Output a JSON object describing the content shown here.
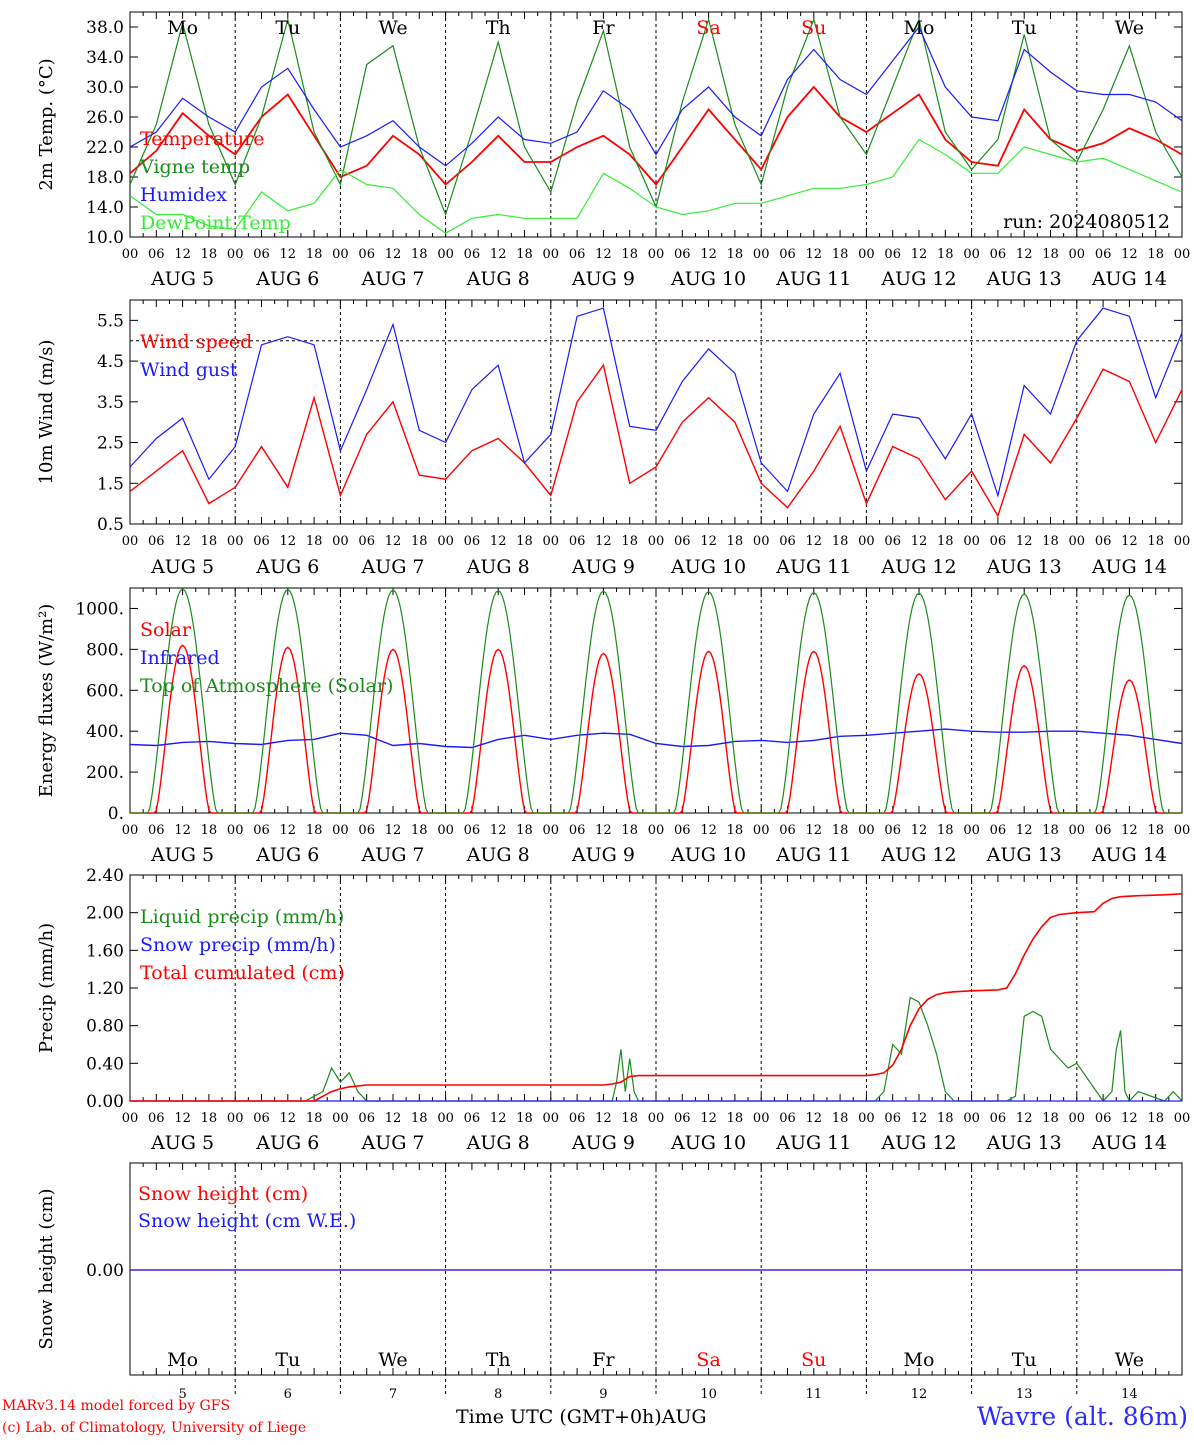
{
  "meta": {
    "run_label": "run: 2024080512",
    "model_line": "MARv3.14 model forced by GFS",
    "credit_line": "(c) Lab. of Climatology, University of Liege",
    "station": "Wavre (alt. 86m)",
    "time_axis_title": "Time UTC (GMT+0h)",
    "month_label": "AUG"
  },
  "days": {
    "names": [
      "Mo",
      "Tu",
      "We",
      "Th",
      "Fr",
      "Sa",
      "Su",
      "Mo",
      "Tu",
      "We"
    ],
    "weekend_flags": [
      false,
      false,
      false,
      false,
      false,
      true,
      true,
      false,
      false,
      false
    ],
    "dates": [
      "AUG  5",
      "AUG  6",
      "AUG  7",
      "AUG  8",
      "AUG  9",
      "AUG 10",
      "AUG 11",
      "AUG 12",
      "AUG 13",
      "AUG 14"
    ],
    "numbers": [
      "5",
      "6",
      "7",
      "8",
      "9",
      "10",
      "11",
      "12",
      "13",
      "14"
    ],
    "hour_labels": [
      "00",
      "06",
      "12",
      "18"
    ],
    "final_hour_label": "00"
  },
  "colors": {
    "temperature": "#ff0000",
    "vigne": "#1a8c1a",
    "humidex": "#1a1aff",
    "dewpoint": "#33ee33",
    "weekend_text": "#ff0000",
    "grid": "#000000"
  },
  "chart_data": [
    {
      "type": "line",
      "title": "",
      "ylabel": "2m Temp. (°C)",
      "ylim": [
        10.0,
        40.0
      ],
      "y_ticks": [
        "10.0",
        "14.0",
        "18.0",
        "22.0",
        "26.0",
        "30.0",
        "34.0",
        "38.0"
      ],
      "y_tick_values": [
        10,
        14,
        18,
        22,
        26,
        30,
        34,
        38
      ],
      "x_unit": "hours since AUG 5 00 UTC",
      "x_max": 240,
      "series": [
        {
          "name": "Temperature",
          "color": "#ff0000",
          "width": 1.8,
          "x": [
            0,
            6,
            12,
            18,
            24,
            30,
            36,
            42,
            48,
            54,
            60,
            66,
            72,
            78,
            84,
            90,
            96,
            102,
            108,
            114,
            120,
            126,
            132,
            138,
            144,
            150,
            156,
            162,
            168,
            174,
            180,
            186,
            192,
            198,
            204,
            210,
            216,
            222,
            228,
            234,
            240
          ],
          "y": [
            18.5,
            21.5,
            26.5,
            23.5,
            21.0,
            26.0,
            29.0,
            23.5,
            18.0,
            19.5,
            23.5,
            21.0,
            17.0,
            20.0,
            23.5,
            20.0,
            20.0,
            22.0,
            23.5,
            21.0,
            17.0,
            22.0,
            27.0,
            23.0,
            19.0,
            26.0,
            30.0,
            26.0,
            24.0,
            26.5,
            29.0,
            23.0,
            20.0,
            19.5,
            27.0,
            23.0,
            21.5,
            22.5,
            24.5,
            23.0,
            21.0
          ]
        },
        {
          "name": "Vigne temp",
          "color": "#1a8c1a",
          "width": 1.2,
          "x": [
            0,
            6,
            12,
            18,
            24,
            30,
            36,
            42,
            48,
            54,
            60,
            66,
            72,
            78,
            84,
            90,
            96,
            102,
            108,
            114,
            120,
            126,
            132,
            138,
            144,
            150,
            156,
            162,
            168,
            174,
            180,
            186,
            192,
            198,
            204,
            210,
            216,
            222,
            228,
            234,
            240
          ],
          "y": [
            17.0,
            25.0,
            38.5,
            25.0,
            17.0,
            26.0,
            39.0,
            24.0,
            17.0,
            33.0,
            35.5,
            22.0,
            13.0,
            24.0,
            36.0,
            22.0,
            16.0,
            28.0,
            37.5,
            22.0,
            14.0,
            28.0,
            39.0,
            25.0,
            17.0,
            30.0,
            39.0,
            26.0,
            21.0,
            30.0,
            39.0,
            24.0,
            19.0,
            23.0,
            37.0,
            23.0,
            20.0,
            27.0,
            35.5,
            24.0,
            18.0
          ]
        },
        {
          "name": "Humidex",
          "color": "#1a1aff",
          "width": 1.2,
          "x": [
            0,
            6,
            12,
            18,
            24,
            30,
            36,
            42,
            48,
            54,
            60,
            66,
            72,
            78,
            84,
            90,
            96,
            102,
            108,
            114,
            120,
            126,
            132,
            138,
            144,
            150,
            156,
            162,
            168,
            174,
            180,
            186,
            192,
            198,
            204,
            210,
            216,
            222,
            228,
            234,
            240
          ],
          "y": [
            22.0,
            24.0,
            28.5,
            26.0,
            24.0,
            30.0,
            32.5,
            27.0,
            22.0,
            23.5,
            25.5,
            22.0,
            19.5,
            22.5,
            26.0,
            23.0,
            22.5,
            24.0,
            29.5,
            27.0,
            21.0,
            27.0,
            30.0,
            26.0,
            23.5,
            31.0,
            35.0,
            31.0,
            29.0,
            33.5,
            38.0,
            30.0,
            26.0,
            25.5,
            35.0,
            32.0,
            29.5,
            29.0,
            29.0,
            28.0,
            25.5
          ]
        },
        {
          "name": "DewPoint Temp",
          "color": "#33ee33",
          "width": 1.2,
          "x": [
            0,
            6,
            12,
            18,
            24,
            30,
            36,
            42,
            48,
            54,
            60,
            66,
            72,
            78,
            84,
            90,
            96,
            102,
            108,
            114,
            120,
            126,
            132,
            138,
            144,
            150,
            156,
            162,
            168,
            174,
            180,
            186,
            192,
            198,
            204,
            210,
            216,
            222,
            228,
            234,
            240
          ],
          "y": [
            15.5,
            13.0,
            13.0,
            11.5,
            11.0,
            16.0,
            13.5,
            14.5,
            19.0,
            17.0,
            16.5,
            13.0,
            10.5,
            12.5,
            13.0,
            12.5,
            12.5,
            12.5,
            18.5,
            16.5,
            14.0,
            13.0,
            13.5,
            14.5,
            14.5,
            15.5,
            16.5,
            16.5,
            17.0,
            18.0,
            23.0,
            21.0,
            18.5,
            18.5,
            22.0,
            21.0,
            20.0,
            20.5,
            19.0,
            17.5,
            16.0
          ]
        }
      ]
    },
    {
      "type": "line",
      "title": "",
      "ylabel": "10m Wind (m/s)",
      "ylim": [
        0.5,
        6.0
      ],
      "y_ticks": [
        "0.5",
        "1.5",
        "2.5",
        "3.5",
        "4.5",
        "5.5"
      ],
      "y_tick_values": [
        0.5,
        1.5,
        2.5,
        3.5,
        4.5,
        5.5
      ],
      "reference_line": 5.0,
      "x_unit": "hours since AUG 5 00 UTC",
      "x_max": 240,
      "series": [
        {
          "name": "Wind speed",
          "color": "#ff0000",
          "width": 1.4,
          "x": [
            0,
            6,
            12,
            18,
            24,
            30,
            36,
            42,
            48,
            54,
            60,
            66,
            72,
            78,
            84,
            90,
            96,
            102,
            108,
            114,
            120,
            126,
            132,
            138,
            144,
            150,
            156,
            162,
            168,
            174,
            180,
            186,
            192,
            198,
            204,
            210,
            216,
            222,
            228,
            234,
            240
          ],
          "y": [
            1.3,
            1.8,
            2.3,
            1.0,
            1.4,
            2.4,
            1.4,
            3.6,
            1.2,
            2.7,
            3.5,
            1.7,
            1.6,
            2.3,
            2.6,
            2.0,
            1.2,
            3.5,
            4.4,
            1.5,
            1.9,
            3.0,
            3.6,
            3.0,
            1.5,
            0.9,
            1.8,
            2.9,
            1.0,
            2.4,
            2.1,
            1.1,
            1.8,
            0.7,
            2.7,
            2.0,
            3.1,
            4.3,
            4.0,
            2.5,
            3.8
          ]
        },
        {
          "name": "Wind gust",
          "color": "#1a1aff",
          "width": 1.2,
          "x": [
            0,
            6,
            12,
            18,
            24,
            30,
            36,
            42,
            48,
            54,
            60,
            66,
            72,
            78,
            84,
            90,
            96,
            102,
            108,
            114,
            120,
            126,
            132,
            138,
            144,
            150,
            156,
            162,
            168,
            174,
            180,
            186,
            192,
            198,
            204,
            210,
            216,
            222,
            228,
            234,
            240
          ],
          "y": [
            1.9,
            2.6,
            3.1,
            1.6,
            2.4,
            4.9,
            5.1,
            4.9,
            2.3,
            3.8,
            5.4,
            2.8,
            2.5,
            3.8,
            4.4,
            2.0,
            2.7,
            5.6,
            5.8,
            2.9,
            2.8,
            4.0,
            4.8,
            4.2,
            2.0,
            1.3,
            3.2,
            4.2,
            1.8,
            3.2,
            3.1,
            2.1,
            3.2,
            1.2,
            3.9,
            3.2,
            5.0,
            5.8,
            5.6,
            3.6,
            5.2
          ]
        }
      ]
    },
    {
      "type": "line",
      "title": "",
      "ylabel": "Energy fluxes (W/m²)",
      "ylim": [
        0,
        1100
      ],
      "y_ticks": [
        "0.",
        "200.",
        "400.",
        "600.",
        "800.",
        "1000."
      ],
      "y_tick_values": [
        0,
        200,
        400,
        600,
        800,
        1000
      ],
      "x_unit": "hours since AUG 5 00 UTC",
      "x_max": 240,
      "series": [
        {
          "name": "Solar",
          "color": "#ff0000",
          "width": 1.4,
          "day_peaks": [
            820,
            810,
            800,
            800,
            780,
            790,
            790,
            680,
            720,
            650
          ]
        },
        {
          "name": "Infrared",
          "color": "#1a1aff",
          "width": 1.4,
          "x": [
            0,
            6,
            12,
            18,
            24,
            30,
            36,
            42,
            48,
            54,
            60,
            66,
            72,
            78,
            84,
            90,
            96,
            102,
            108,
            114,
            120,
            126,
            132,
            138,
            144,
            150,
            156,
            162,
            168,
            174,
            180,
            186,
            192,
            198,
            204,
            210,
            216,
            222,
            228,
            234,
            240
          ],
          "y": [
            335,
            330,
            345,
            350,
            340,
            335,
            355,
            360,
            390,
            380,
            330,
            340,
            325,
            320,
            360,
            380,
            360,
            380,
            390,
            385,
            340,
            325,
            330,
            350,
            355,
            345,
            355,
            375,
            380,
            390,
            400,
            410,
            400,
            395,
            395,
            400,
            400,
            390,
            380,
            360,
            340
          ]
        },
        {
          "name": "Top of Atmosphere (Solar)",
          "color": "#1a8c1a",
          "width": 1.2,
          "day_peaks": [
            1095,
            1092,
            1090,
            1087,
            1085,
            1082,
            1078,
            1075,
            1070,
            1065
          ]
        }
      ]
    },
    {
      "type": "line",
      "title": "",
      "ylabel": "Precip (mm/h)",
      "ylim": [
        0.0,
        2.4
      ],
      "y_ticks": [
        "0.00",
        "0.40",
        "0.80",
        "1.20",
        "1.60",
        "2.00",
        "2.40"
      ],
      "y_tick_values": [
        0,
        0.4,
        0.8,
        1.2,
        1.6,
        2.0,
        2.4
      ],
      "x_unit": "hours since AUG 5 00 UTC",
      "x_max": 240,
      "series": [
        {
          "name": "Liquid precip (mm/h)",
          "color": "#1a8c1a",
          "width": 1.2,
          "x": [
            0,
            40,
            42,
            44,
            46,
            48,
            50,
            52,
            54,
            60,
            110,
            111,
            112,
            113,
            114,
            115,
            116,
            117,
            120,
            170,
            172,
            174,
            176,
            178,
            180,
            182,
            184,
            186,
            188,
            192,
            196,
            200,
            202,
            204,
            206,
            208,
            210,
            212,
            214,
            216,
            222,
            224,
            225,
            226,
            227,
            228,
            230,
            236,
            238,
            240
          ],
          "y": [
            0,
            0,
            0.05,
            0.1,
            0.35,
            0.2,
            0.3,
            0.1,
            0,
            0,
            0,
            0.2,
            0.55,
            0.1,
            0.45,
            0.1,
            0,
            0,
            0,
            0,
            0.1,
            0.6,
            0.5,
            1.1,
            1.05,
            0.8,
            0.5,
            0.1,
            0,
            0,
            0,
            0,
            0.05,
            0.9,
            0.95,
            0.9,
            0.55,
            0.45,
            0.35,
            0.4,
            0,
            0.1,
            0.55,
            0.75,
            0.1,
            0,
            0.1,
            0,
            0.1,
            0
          ]
        },
        {
          "name": "Snow precip (mm/h)",
          "color": "#1a1aff",
          "width": 1.2,
          "x": [
            0,
            240
          ],
          "y": [
            0,
            0
          ]
        },
        {
          "name": "Total cumulated (cm)",
          "color": "#ff0000",
          "width": 1.6,
          "x": [
            0,
            42,
            46,
            48,
            50,
            54,
            60,
            108,
            110,
            112,
            114,
            116,
            120,
            168,
            170,
            172,
            174,
            176,
            178,
            180,
            182,
            184,
            186,
            188,
            192,
            198,
            200,
            202,
            204,
            206,
            208,
            210,
            212,
            214,
            216,
            220,
            222,
            224,
            226,
            230,
            236,
            240
          ],
          "y": [
            0,
            0,
            0.1,
            0.13,
            0.15,
            0.17,
            0.17,
            0.17,
            0.18,
            0.2,
            0.26,
            0.27,
            0.27,
            0.27,
            0.28,
            0.3,
            0.38,
            0.55,
            0.8,
            0.98,
            1.08,
            1.13,
            1.15,
            1.16,
            1.17,
            1.18,
            1.2,
            1.35,
            1.55,
            1.72,
            1.85,
            1.95,
            1.98,
            1.99,
            2.0,
            2.01,
            2.1,
            2.15,
            2.17,
            2.18,
            2.19,
            2.2
          ]
        }
      ]
    },
    {
      "type": "line",
      "title": "",
      "ylabel": "Snow height (cm)",
      "y_ticks": [
        "0.00"
      ],
      "y_tick_values": [
        0
      ],
      "x_unit": "hours since AUG 5 00 UTC",
      "x_max": 240,
      "series": [
        {
          "name": "Snow height (cm)",
          "color": "#ff0000",
          "width": 1.2,
          "x": [
            0,
            240
          ],
          "y": [
            0,
            0
          ]
        },
        {
          "name": "Snow height (cm W.E.)",
          "color": "#1a1aff",
          "width": 1.2,
          "x": [
            0,
            240
          ],
          "y": [
            0,
            0
          ]
        }
      ]
    }
  ]
}
